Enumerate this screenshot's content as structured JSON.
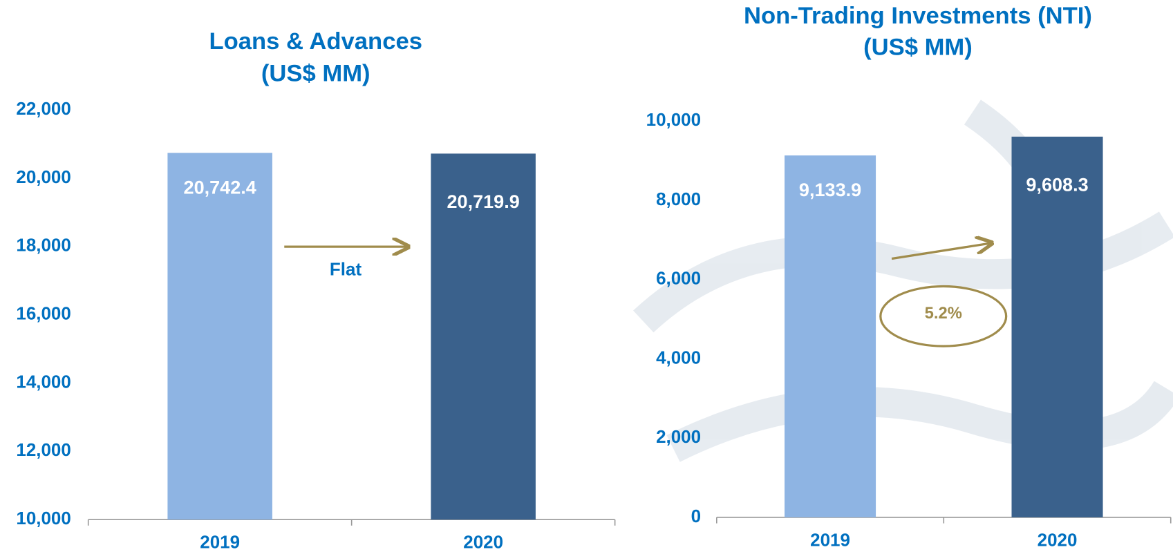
{
  "chart_data": [
    {
      "type": "bar",
      "title": "Loans & Advances",
      "subtitle": "(US$ MM)",
      "categories": [
        "2019",
        "2020"
      ],
      "values": [
        20742.4,
        20719.9
      ],
      "value_labels": [
        "20,742.4",
        "20,719.9"
      ],
      "colors": [
        "#8eb4e3",
        "#3a618c"
      ],
      "ylim": [
        10000,
        22000
      ],
      "yticks": [
        {
          "value": 10000,
          "label": "10,000"
        },
        {
          "value": 12000,
          "label": "12,000"
        },
        {
          "value": 14000,
          "label": "14,000"
        },
        {
          "value": 16000,
          "label": "16,000"
        },
        {
          "value": 18000,
          "label": "18,000"
        },
        {
          "value": 20000,
          "label": "20,000"
        },
        {
          "value": 22000,
          "label": "22,000"
        }
      ],
      "annotation": "Flat"
    },
    {
      "type": "bar",
      "title": "Non-Trading Investments (NTI)",
      "subtitle": "(US$ MM)",
      "categories": [
        "2019",
        "2020"
      ],
      "values": [
        9133.9,
        9608.3
      ],
      "value_labels": [
        "9,133.9",
        "9,608.3"
      ],
      "colors": [
        "#8eb4e3",
        "#3a618c"
      ],
      "ylim": [
        0,
        10000
      ],
      "yticks": [
        0,
        {
          "value": 2000,
          "label": "2,000"
        },
        {
          "value": 4000,
          "label": "4,000"
        },
        {
          "value": 6000,
          "label": "6,000"
        },
        {
          "value": 8000,
          "label": "8,000"
        },
        {
          "value": 10000,
          "label": "10,000"
        }
      ],
      "annotation": "5.2%"
    }
  ]
}
